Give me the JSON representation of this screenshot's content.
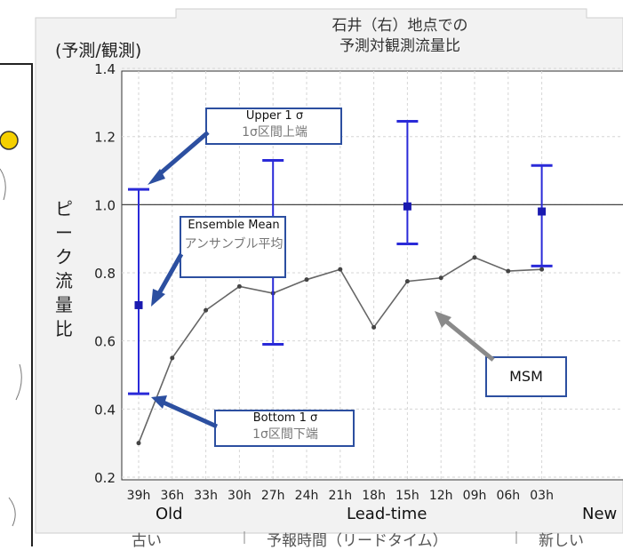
{
  "chart_data": {
    "type": "line",
    "title_lines": [
      "石井（右）地点での",
      "予測対観測流量比"
    ],
    "unit_label": "(予測/観測)",
    "ylabel": "ピーク流量比",
    "ylim": [
      0.2,
      1.4
    ],
    "yticks": [
      "1.4",
      "1.2",
      "1.0",
      "0.8",
      "0.6",
      "0.4",
      "0.2"
    ],
    "xticks": [
      "39h",
      "36h",
      "33h",
      "30h",
      "27h",
      "24h",
      "21h",
      "18h",
      "15h",
      "12h",
      "09h",
      "06h",
      "03h"
    ],
    "reference_line": 1.0,
    "grid": true,
    "series": [
      {
        "name": "MSM",
        "color": "#666666",
        "values": [
          0.3,
          0.55,
          0.69,
          0.76,
          0.74,
          0.78,
          0.81,
          0.64,
          0.775,
          0.785,
          0.845,
          0.805,
          0.81
        ]
      }
    ],
    "ensemble": [
      {
        "x": "39h",
        "mean": 0.705,
        "upper": 1.045,
        "lower": 0.445
      },
      {
        "x": "27h",
        "mean": 0.84,
        "upper": 1.13,
        "lower": 0.59
      },
      {
        "x": "15h",
        "mean": 0.995,
        "upper": 1.245,
        "lower": 0.885
      },
      {
        "x": "03h",
        "mean": 0.98,
        "upper": 1.115,
        "lower": 0.82
      }
    ],
    "errorbar_color": "#2a2ad8",
    "callouts": {
      "upper": "Upper 1 σ",
      "upper_jp": "1σ区間上端",
      "mean": "Ensemble Mean",
      "mean_jp": "アンサンブル平均",
      "bottom": "Bottom 1 σ",
      "bottom_jp": "1σ区間下端",
      "msm": "MSM"
    },
    "bottom_labels": {
      "old": "Old",
      "lead": "Lead-time",
      "new": "New",
      "old_jp": "古い",
      "lead_jp": "予報時間（リードタイム）",
      "new_jp": "新しい"
    }
  }
}
